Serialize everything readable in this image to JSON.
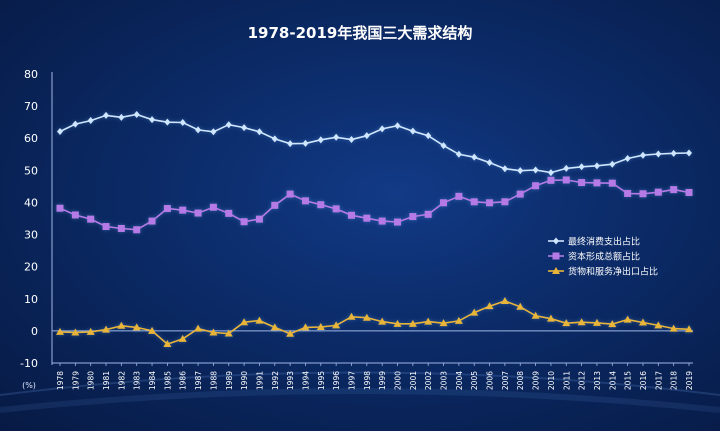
{
  "chart_data": {
    "type": "line",
    "title": "1978-2019年我国三大需求结构",
    "ylabel": "(%)",
    "ylim": [
      -10,
      80
    ],
    "yticks": [
      -10,
      0,
      10,
      20,
      30,
      40,
      50,
      60,
      70,
      80
    ],
    "grid": false,
    "legend_position": "right",
    "categories": [
      "1978",
      "1979",
      "1980",
      "1981",
      "1982",
      "1983",
      "1984",
      "1985",
      "1986",
      "1987",
      "1988",
      "1989",
      "1990",
      "1991",
      "1992",
      "1993",
      "1994",
      "1995",
      "1996",
      "1997",
      "1998",
      "1999",
      "2000",
      "2001",
      "2002",
      "2003",
      "2004",
      "2005",
      "2006",
      "2007",
      "2008",
      "2009",
      "2010",
      "2011",
      "2012",
      "2013",
      "2014",
      "2015",
      "2016",
      "2017",
      "2018",
      "2019"
    ],
    "series": [
      {
        "name": "最终消费支出占比",
        "color": "#cfe6ff",
        "marker": "diamond",
        "values": [
          62.1,
          64.4,
          65.5,
          67.1,
          66.5,
          67.4,
          65.8,
          65.0,
          64.9,
          62.6,
          62.0,
          64.2,
          63.3,
          62.0,
          59.8,
          58.3,
          58.4,
          59.5,
          60.3,
          59.6,
          60.8,
          62.9,
          63.9,
          62.2,
          60.8,
          57.7,
          55.0,
          54.1,
          52.4,
          50.5,
          49.9,
          50.1,
          49.3,
          50.6,
          51.1,
          51.4,
          51.9,
          53.7,
          54.7,
          55.1,
          55.3,
          55.4
        ]
      },
      {
        "name": "资本形成总额占比",
        "color": "#b57ae6",
        "marker": "square",
        "values": [
          38.2,
          36.1,
          34.8,
          32.5,
          31.9,
          31.5,
          34.2,
          38.1,
          37.6,
          36.7,
          38.5,
          36.6,
          34.0,
          34.8,
          39.1,
          42.6,
          40.5,
          39.3,
          38.0,
          36.0,
          35.1,
          34.2,
          33.9,
          35.6,
          36.3,
          39.9,
          41.9,
          40.2,
          39.9,
          40.2,
          42.6,
          45.2,
          46.9,
          47.0,
          46.2,
          46.1,
          46.0,
          42.8,
          42.7,
          43.2,
          44.0,
          43.1
        ]
      },
      {
        "name": "货物和服务净出口占比",
        "color": "#e8b43a",
        "marker": "triangle",
        "values": [
          -0.3,
          -0.5,
          -0.3,
          0.4,
          1.6,
          1.1,
          0.0,
          -4.1,
          -2.5,
          0.7,
          -0.5,
          -0.8,
          2.7,
          3.2,
          1.1,
          -0.9,
          1.1,
          1.2,
          1.7,
          4.4,
          4.1,
          2.9,
          2.2,
          2.2,
          2.9,
          2.4,
          3.1,
          5.7,
          7.7,
          9.3,
          7.5,
          4.7,
          3.8,
          2.4,
          2.7,
          2.5,
          2.1,
          3.5,
          2.6,
          1.7,
          0.7,
          0.5
        ]
      }
    ]
  }
}
